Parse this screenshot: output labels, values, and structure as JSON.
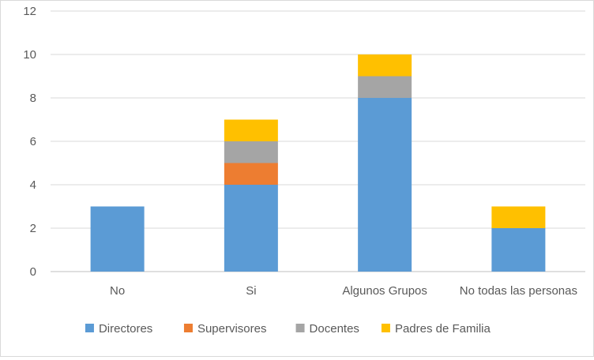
{
  "chart_data": {
    "type": "bar",
    "stacked": true,
    "title": "",
    "xlabel": "",
    "ylabel": "",
    "categories": [
      "No",
      "Si",
      "Algunos Grupos",
      "No todas las personas"
    ],
    "series": [
      {
        "name": "Directores",
        "color": "#5b9bd5",
        "values": [
          3,
          4,
          8,
          2
        ]
      },
      {
        "name": "Supervisores",
        "color": "#ed7d31",
        "values": [
          0,
          1,
          0,
          0
        ]
      },
      {
        "name": "Docentes",
        "color": "#a5a5a5",
        "values": [
          0,
          1,
          1,
          0
        ]
      },
      {
        "name": "Padres de Familia",
        "color": "#ffc000",
        "values": [
          0,
          1,
          1,
          1
        ]
      }
    ],
    "ylim": [
      0,
      12
    ],
    "yticks": [
      "0",
      "2",
      "4",
      "6",
      "8",
      "10",
      "12"
    ],
    "grid": true,
    "legend_position": "bottom"
  }
}
